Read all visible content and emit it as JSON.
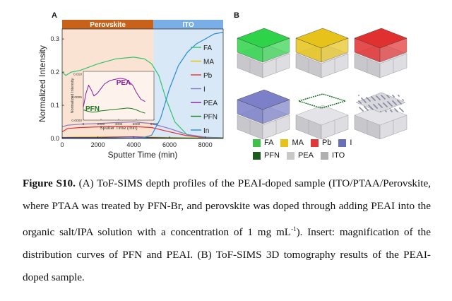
{
  "panel_a_letter": "A",
  "panel_b_letter": "B",
  "chart_data": {
    "type": "line",
    "xlabel": "Sputter Time (min)",
    "ylabel": "Normalized Intensity",
    "xlim": [
      0,
      9000
    ],
    "ylim": [
      0,
      0.33
    ],
    "xticks": [
      0,
      2000,
      4000,
      6000,
      8000
    ],
    "yticks": [
      0.0,
      0.1,
      0.2,
      0.3
    ],
    "regions": [
      {
        "label": "Perovskite",
        "x": [
          0,
          5100
        ],
        "color": "#c8621a",
        "bg": "#fbe3d3"
      },
      {
        "label": "ITO",
        "x": [
          5100,
          9000
        ],
        "color": "#7aaee6",
        "bg": "#d9e8f7"
      }
    ],
    "legend_position": "right",
    "series": [
      {
        "name": "FA",
        "color": "#2ec46e",
        "x": [
          0,
          200,
          500,
          1000,
          2000,
          3000,
          4000,
          4600,
          5000,
          5400,
          5800,
          6300,
          7000,
          8000,
          9000
        ],
        "y": [
          0.2,
          0.19,
          0.2,
          0.205,
          0.225,
          0.24,
          0.245,
          0.24,
          0.225,
          0.19,
          0.12,
          0.05,
          0.01,
          0.003,
          0.002
        ]
      },
      {
        "name": "MA",
        "color": "#e8c000",
        "x": [
          0,
          500,
          2000,
          4000,
          5000,
          6000,
          7000,
          8000,
          9000
        ],
        "y": [
          0.003,
          0.004,
          0.005,
          0.005,
          0.004,
          0.003,
          0.002,
          0.002,
          0.002
        ]
      },
      {
        "name": "Pb",
        "color": "#e83030",
        "x": [
          0,
          300,
          1000,
          2000,
          3000,
          4000,
          5000,
          6000,
          7000,
          8000,
          9000
        ],
        "y": [
          0.02,
          0.03,
          0.033,
          0.035,
          0.036,
          0.036,
          0.033,
          0.02,
          0.008,
          0.003,
          0.002
        ]
      },
      {
        "name": "I",
        "color": "#8a78c0",
        "x": [
          0,
          300,
          1000,
          2000,
          3000,
          4000,
          5000,
          6000,
          7000,
          8000,
          9000
        ],
        "y": [
          0.035,
          0.04,
          0.043,
          0.045,
          0.048,
          0.05,
          0.045,
          0.03,
          0.012,
          0.004,
          0.002
        ]
      },
      {
        "name": "PEA",
        "color": "#8a1a9a",
        "x": [
          0,
          1000,
          2000,
          3000,
          4000,
          5000,
          6000,
          7000,
          9000
        ],
        "y": [
          0.003,
          0.003,
          0.003,
          0.004,
          0.005,
          0.003,
          0.002,
          0.001,
          0.001
        ]
      },
      {
        "name": "PFN",
        "color": "#1a7a1a",
        "x": [
          0,
          1000,
          2000,
          3000,
          4000,
          5000,
          6000,
          7000,
          9000
        ],
        "y": [
          0.001,
          0.001,
          0.001,
          0.001,
          0.001,
          0.001,
          0.001,
          0.001,
          0.001
        ]
      },
      {
        "name": "In",
        "color": "#2a8ad8",
        "x": [
          0,
          3000,
          4500,
          5000,
          5500,
          6000,
          6500,
          7000,
          7500,
          8000,
          8500,
          9000
        ],
        "y": [
          0.0,
          0.0,
          0.002,
          0.01,
          0.06,
          0.15,
          0.22,
          0.26,
          0.285,
          0.3,
          0.315,
          0.32
        ]
      }
    ],
    "inset": {
      "xlabel": "Sputter Time (min)",
      "ylabel": "Normalized Intensity",
      "xlim": [
        0,
        8000
      ],
      "ylim": [
        0,
        0.0105
      ],
      "xticks": [
        0,
        2000,
        4000,
        6000,
        8000
      ],
      "yticks": [
        "0.0000",
        "0.0005",
        "0.010"
      ],
      "labels": [
        {
          "text": "PEA",
          "color": "#8a1a9a"
        },
        {
          "text": "PFN",
          "color": "#1a7a1a"
        }
      ],
      "series": [
        {
          "name": "PEA",
          "color": "#8a1a9a",
          "x": [
            0,
            300,
            600,
            900,
            1200,
            1600,
            2000,
            2400,
            3000,
            3600,
            4200,
            4800,
            5200,
            5600,
            6000,
            6500,
            7000
          ],
          "y": [
            0.0028,
            0.0058,
            0.0075,
            0.0065,
            0.0052,
            0.0058,
            0.0068,
            0.0078,
            0.0085,
            0.0088,
            0.009,
            0.0088,
            0.0082,
            0.0075,
            0.006,
            0.0045,
            0.004
          ]
        },
        {
          "name": "PFN",
          "color": "#1a7a1a",
          "x": [
            0,
            500,
            1000,
            1500,
            2000,
            2500,
            3000,
            3500,
            4000,
            4500,
            5000,
            5500,
            6000,
            6500,
            7000
          ],
          "y": [
            0.0022,
            0.0019,
            0.0017,
            0.0018,
            0.002,
            0.0021,
            0.0022,
            0.0023,
            0.0024,
            0.0025,
            0.0026,
            0.0025,
            0.0022,
            0.0018,
            0.0015
          ]
        }
      ]
    }
  },
  "tomography": {
    "cubes": [
      {
        "name": "FA",
        "color": "#2ed34a"
      },
      {
        "name": "MA",
        "color": "#e6c21a"
      },
      {
        "name": "Pb",
        "color": "#e03030"
      },
      {
        "name": "I",
        "color": "#7c80c8"
      },
      {
        "name": "PFN",
        "color": "#1d6e2a"
      },
      {
        "name": "ITO",
        "color": "#b8b8c0"
      }
    ],
    "legend": [
      [
        {
          "label": "FA",
          "color": "#3ec04a"
        },
        {
          "label": "MA",
          "color": "#e6c21a"
        },
        {
          "label": "Pb",
          "color": "#e03838"
        },
        {
          "label": "I",
          "color": "#6a70b8"
        }
      ],
      [
        {
          "label": "PFN",
          "color": "#1a5a1a"
        },
        {
          "label": "PEA",
          "color": "#c8c8c8"
        },
        {
          "label": "ITO",
          "color": "#b0b0b0"
        }
      ]
    ]
  },
  "caption": {
    "label": "Figure S10.",
    "text_1": " (A) ToF-SIMS depth profiles of the PEAI-doped sample (ITO/PTAA/Perovskite, where PTAA was treated by PFN-Br, and perovskite was doped through adding PEAI into the organic salt/IPA solution with a concentration of 1 mg mL",
    "superscript": "-1",
    "text_2": "). Insert: magnification of the distribution curves of PFN and PEAI. (B) ToF-SIMS 3D tomography results of the PEAI-doped sample."
  }
}
